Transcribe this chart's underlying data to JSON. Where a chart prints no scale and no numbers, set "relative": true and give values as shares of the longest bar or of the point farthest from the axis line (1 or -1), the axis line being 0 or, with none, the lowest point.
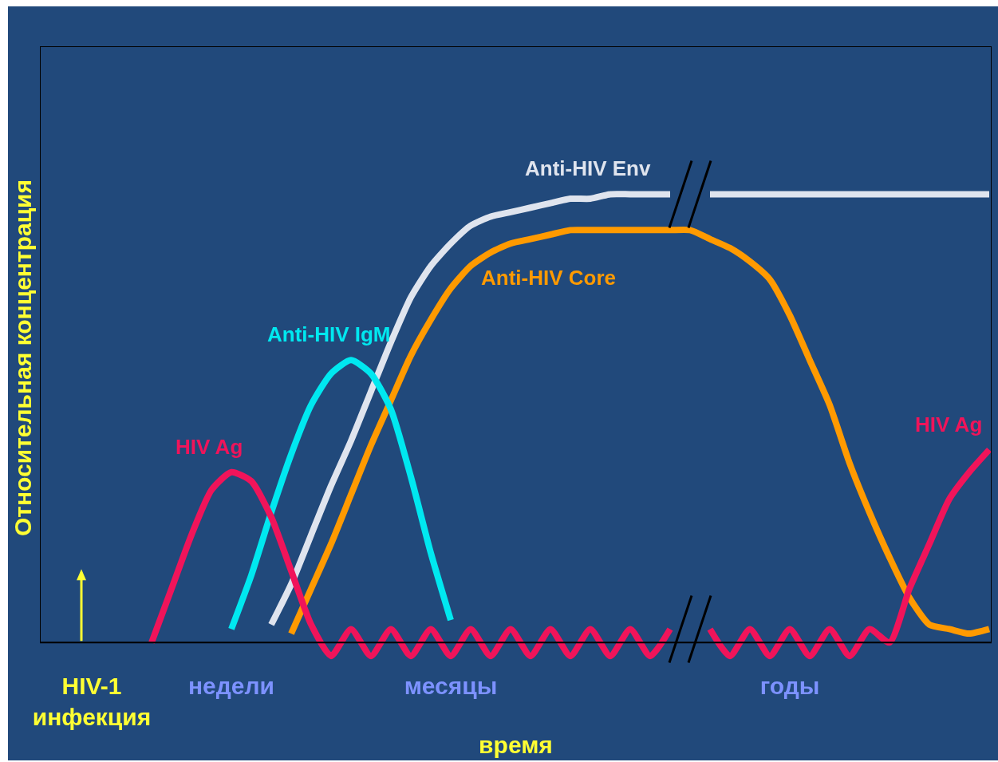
{
  "chart_data": {
    "type": "line",
    "relative": true,
    "ylabel": "Относительная концентрация",
    "xlabel": "время",
    "line_style": "solid",
    "marker": "none",
    "categories": [
      null,
      null,
      "HIV-1\nинфекция",
      null,
      null,
      null,
      null,
      null,
      null,
      "недели",
      null,
      null,
      null,
      null,
      null,
      null,
      null,
      null,
      null,
      null,
      "месяцы",
      null,
      null,
      null,
      null,
      null,
      null,
      null,
      null,
      null,
      null,
      null,
      null,
      null,
      null,
      null,
      null,
      "годы",
      null,
      null,
      null,
      null,
      null,
      null,
      null,
      null,
      null,
      null
    ],
    "series": [
      {
        "name": "Anti-HIV Env",
        "color": "#dfe4ee",
        "values": [
          null,
          null,
          null,
          null,
          null,
          null,
          null,
          null,
          null,
          null,
          null,
          0.04,
          0.13,
          0.24,
          0.35,
          0.45,
          0.56,
          0.67,
          0.77,
          0.84,
          0.89,
          0.93,
          0.95,
          0.96,
          0.97,
          0.98,
          0.99,
          0.99,
          1,
          1,
          1,
          1,
          null,
          1,
          1,
          1,
          1,
          1,
          1,
          1,
          1,
          1,
          1,
          1,
          1,
          1,
          1,
          1
        ]
      },
      {
        "name": "Anti-HIV Core",
        "color": "#ff9a00",
        "values": [
          null,
          null,
          null,
          null,
          null,
          null,
          null,
          null,
          null,
          null,
          null,
          null,
          0.02,
          0.12,
          0.22,
          0.33,
          0.44,
          0.54,
          0.64,
          0.72,
          0.79,
          0.84,
          0.87,
          0.89,
          0.9,
          0.91,
          0.92,
          0.92,
          0.92,
          0.92,
          0.92,
          0.92,
          0.92,
          0.9,
          0.88,
          0.85,
          0.81,
          0.73,
          0.63,
          0.53,
          0.4,
          0.29,
          0.19,
          0.1,
          0.04,
          0.03,
          0.02,
          0.03
        ]
      },
      {
        "name": "Anti-HIV IgM",
        "color": "#00e8f0",
        "values": [
          null,
          null,
          null,
          null,
          null,
          null,
          null,
          null,
          null,
          0.03,
          0.15,
          0.29,
          0.42,
          0.53,
          0.6,
          0.63,
          0.6,
          0.52,
          0.37,
          0.2,
          0.05,
          null,
          null,
          null,
          null,
          null,
          null,
          null,
          null,
          null,
          null,
          null,
          null,
          null,
          null,
          null,
          null,
          null,
          null,
          null,
          null,
          null,
          null,
          null,
          null,
          null,
          null,
          null
        ]
      },
      {
        "name": "HIV Ag",
        "color": "#f0145a",
        "values": [
          null,
          null,
          null,
          null,
          null,
          0,
          0.12,
          0.24,
          0.34,
          0.38,
          0.36,
          0.28,
          0.16,
          0.04,
          -0.03,
          0.03,
          -0.03,
          0.03,
          -0.03,
          0.03,
          -0.03,
          0.03,
          -0.03,
          0.03,
          -0.03,
          0.03,
          -0.03,
          0.03,
          -0.03,
          0.03,
          -0.03,
          0.03,
          null,
          null,
          null,
          null,
          null,
          null,
          null,
          null,
          null,
          null,
          null,
          null,
          null,
          null,
          null,
          null
        ]
      },
      {
        "name": "HIV Ag",
        "color": "#f0145a",
        "values": [
          null,
          null,
          null,
          null,
          null,
          null,
          null,
          null,
          null,
          null,
          null,
          null,
          null,
          null,
          null,
          null,
          null,
          null,
          null,
          null,
          null,
          null,
          null,
          null,
          null,
          null,
          null,
          null,
          null,
          null,
          null,
          null,
          null,
          0.03,
          -0.03,
          0.03,
          -0.03,
          0.03,
          -0.03,
          0.03,
          -0.03,
          0.03,
          0,
          0.12,
          0.22,
          0.32,
          0.38,
          0.43
        ]
      }
    ]
  }
}
